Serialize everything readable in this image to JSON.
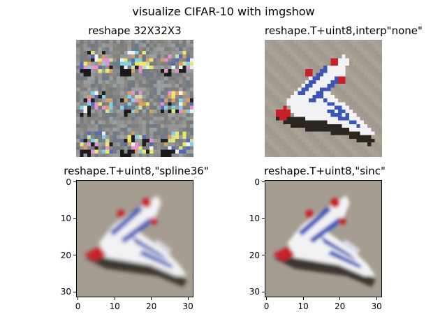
{
  "figure": {
    "title": "visualize CIFAR-10 with imgshow"
  },
  "panels": [
    {
      "title": "reshape 32X32X3",
      "interpolation": "none",
      "axes_visible": false,
      "content": "raw reshape tiled 3x3 grid"
    },
    {
      "title": "reshape.T+uint8,interp\"none\"",
      "interpolation": "none",
      "axes_visible": false,
      "content": "airplane"
    },
    {
      "title": "reshape.T+uint8,\"spline36\"",
      "interpolation": "spline36",
      "axes_visible": true,
      "content": "airplane"
    },
    {
      "title": "reshape.T+uint8,\"sinc\"",
      "interpolation": "sinc",
      "axes_visible": true,
      "content": "airplane"
    }
  ],
  "axes": {
    "x_ticks": [
      "0",
      "10",
      "20",
      "30"
    ],
    "y_ticks": [
      "0",
      "10",
      "20",
      "30"
    ],
    "xlim": [
      -0.5,
      31.5
    ],
    "ylim": [
      31.5,
      -0.5
    ]
  },
  "colors": {
    "background_tan": "#a59d92",
    "shadow": "#2c2620",
    "plane_white": "#f2f2f4",
    "plane_blue": "#3c56b8",
    "plane_red": "#c8202a",
    "raw_gray": "#8a8a8a"
  }
}
